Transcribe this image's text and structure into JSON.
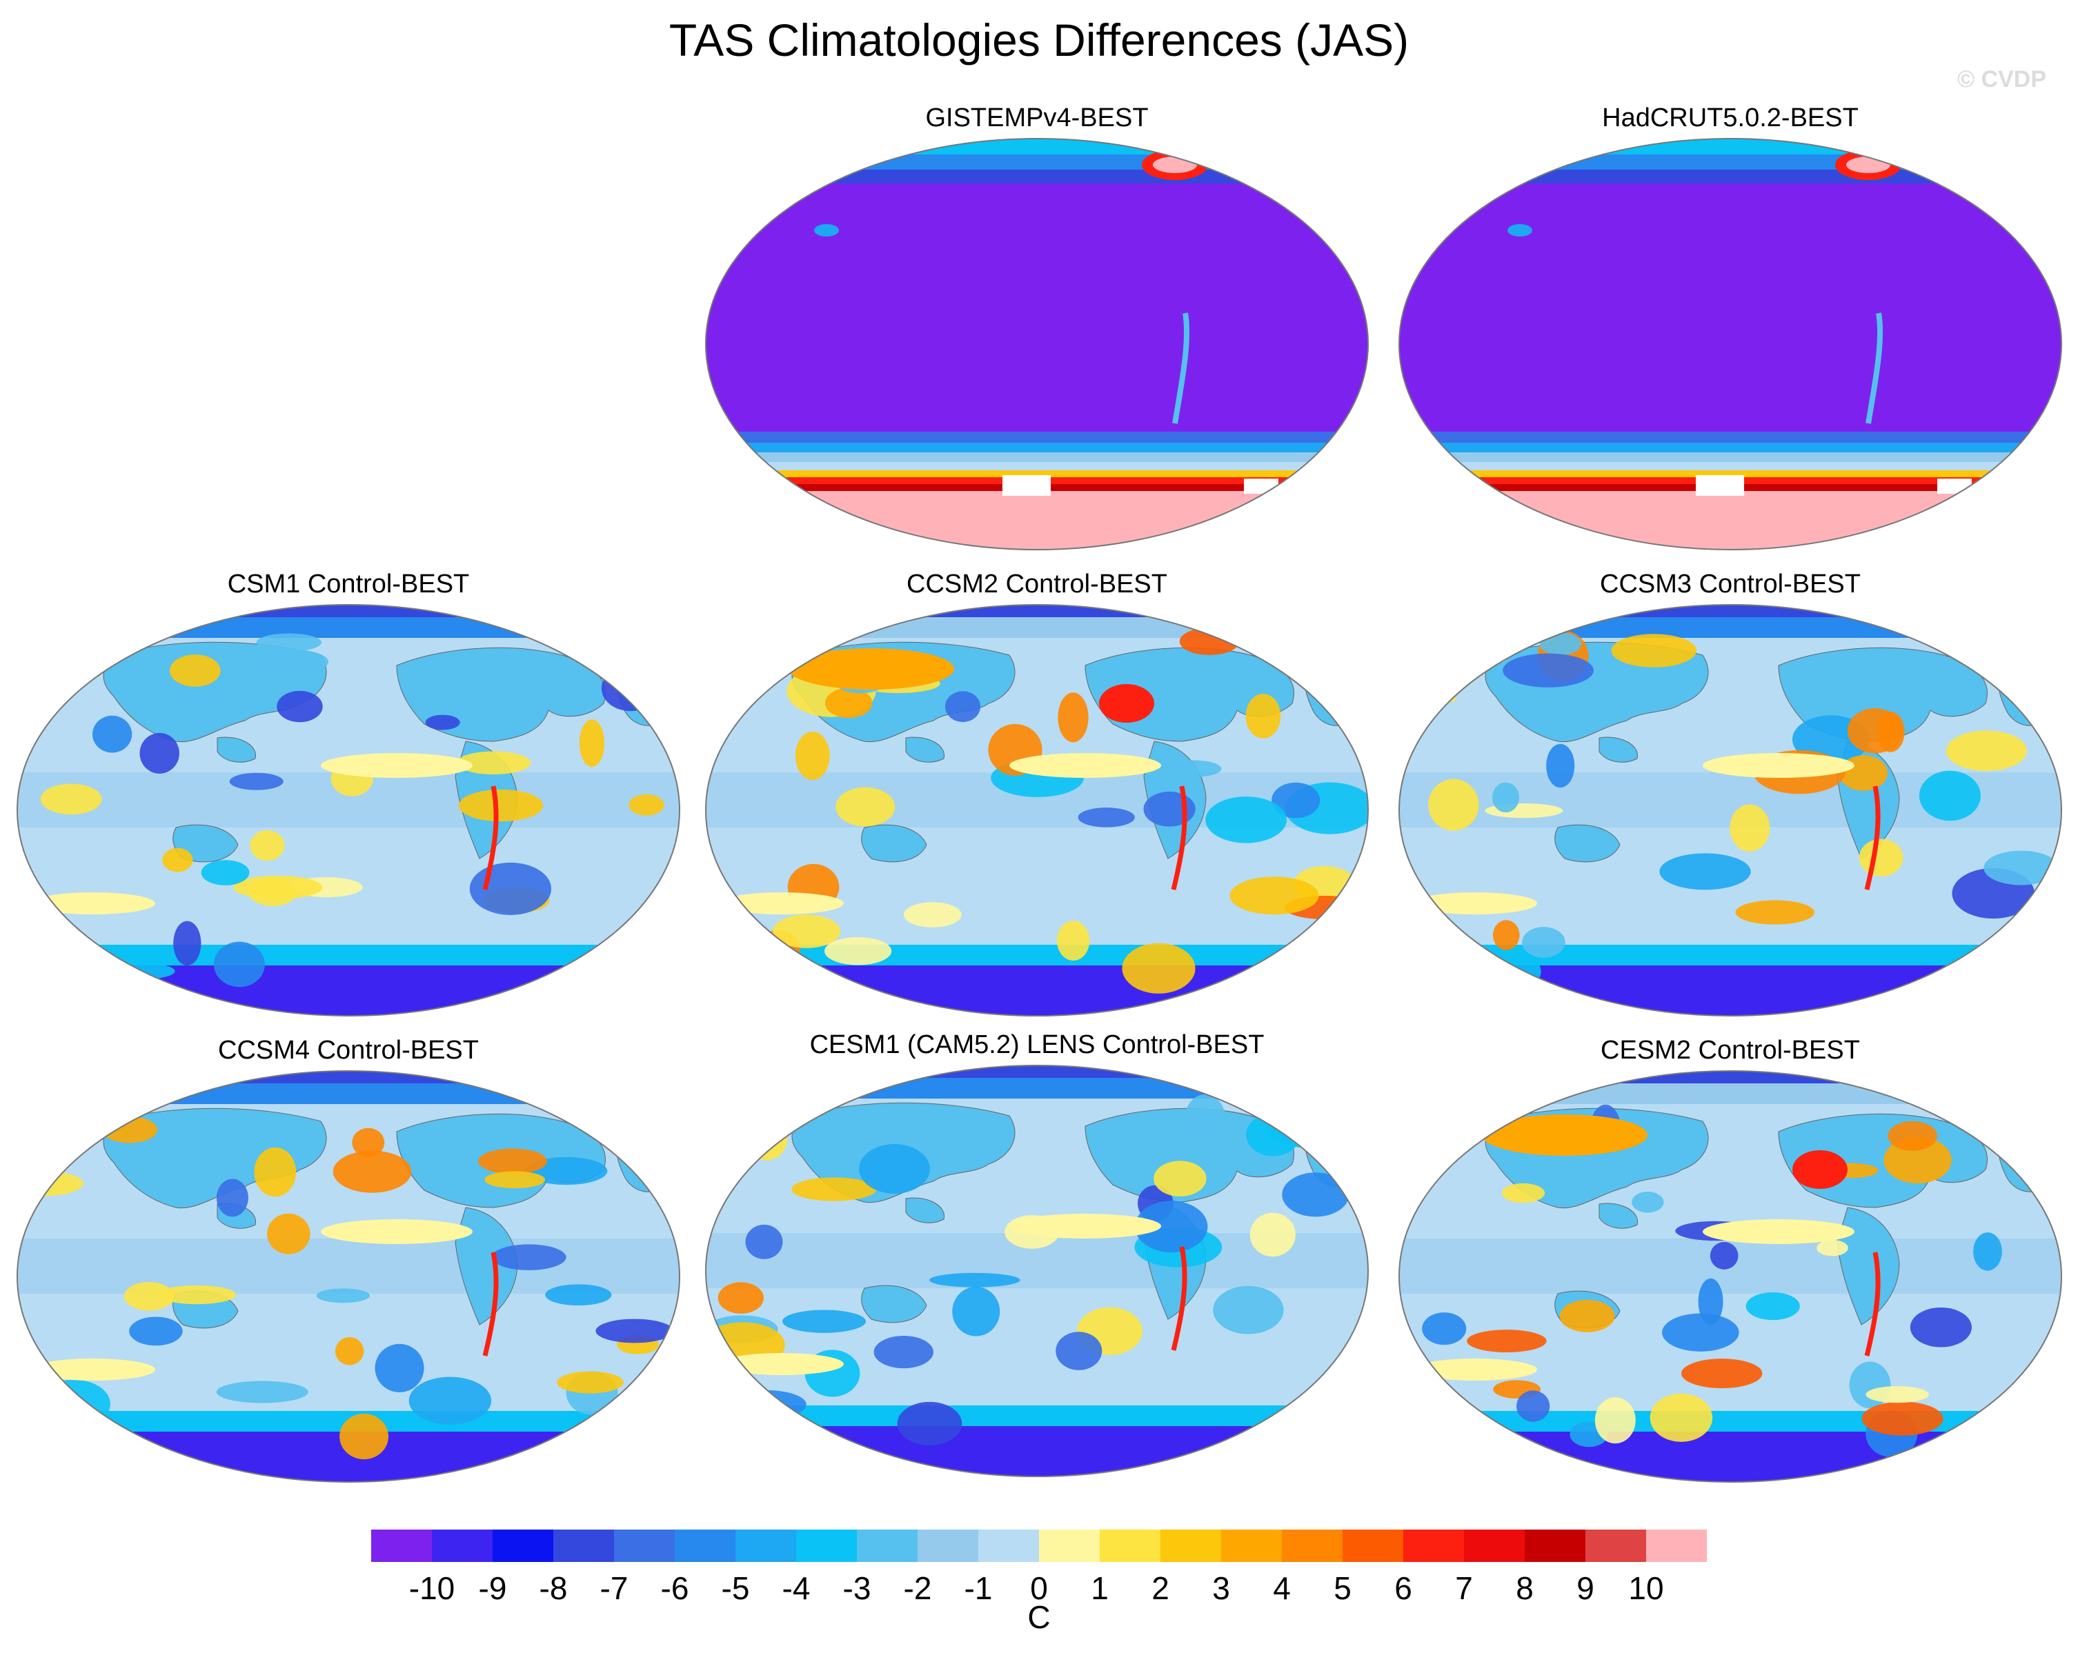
{
  "title": "TAS Climatologies Differences (JAS)",
  "credit": "© CVDP",
  "panels": [
    {
      "title": "GISTEMPv4-BEST",
      "bg": "#7d22ee",
      "pattern": "obs"
    },
    {
      "title": "HadCRUT5.0.2-BEST",
      "bg": "#7d22ee",
      "pattern": "obs"
    },
    {
      "title": "CSM1 Control-BEST",
      "bg": "#b8dcf4",
      "pattern": "cold"
    },
    {
      "title": "CCSM2 Control-BEST",
      "bg": "#b8dcf4",
      "pattern": "warm"
    },
    {
      "title": "CCSM3 Control-BEST",
      "bg": "#b8dcf4",
      "pattern": "mixed"
    },
    {
      "title": "CCSM4 Control-BEST",
      "bg": "#b8dcf4",
      "pattern": "mixed"
    },
    {
      "title": "CESM1 (CAM5.2) LENS Control-BEST",
      "bg": "#b8dcf4",
      "pattern": "mixed"
    },
    {
      "title": "CESM2 Control-BEST",
      "bg": "#b8dcf4",
      "pattern": "warm"
    }
  ],
  "colorbar": {
    "unit": "C",
    "labels": [
      "-10",
      "-9",
      "-8",
      "-7",
      "-6",
      "-5",
      "-4",
      "-3",
      "-2",
      "-1",
      "0",
      "1",
      "2",
      "3",
      "4",
      "5",
      "6",
      "7",
      "8",
      "9",
      "10"
    ],
    "colors": [
      "#7d22ee",
      "#3e24f0",
      "#0b13f2",
      "#3448de",
      "#3a6fe6",
      "#2788ee",
      "#1ea7f2",
      "#0ac2f5",
      "#56c0ef",
      "#96caed",
      "#b8dcf4",
      "#fff79f",
      "#fde441",
      "#fdc70c",
      "#fea701",
      "#fe8601",
      "#fd5b01",
      "#fd2010",
      "#ee0b0b",
      "#c60000",
      "#df4343",
      "#ffb3b9"
    ]
  }
}
